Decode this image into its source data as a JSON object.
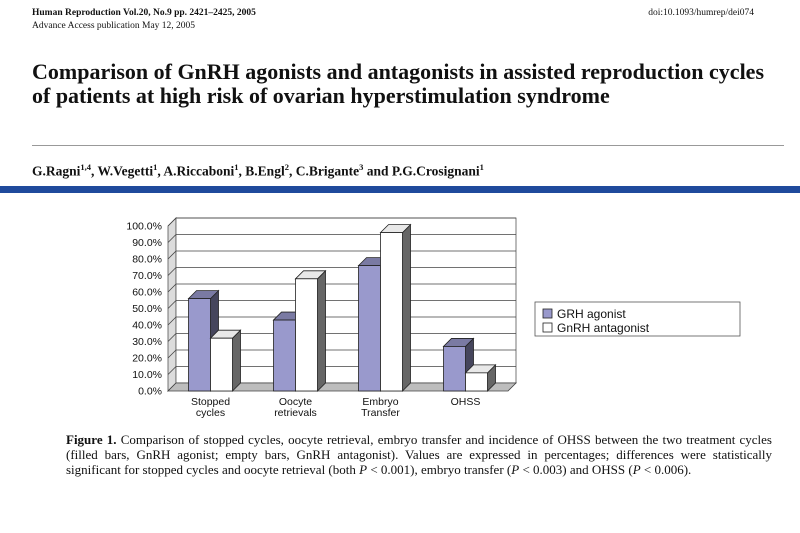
{
  "header": {
    "journal": "Human Reproduction Vol.20, No.9 pp. 2421–2425, 2005",
    "access": "Advance Access publication May 12, 2005",
    "doi": "doi:10.1093/humrep/dei074"
  },
  "title": "Comparison of GnRH agonists and antagonists in assisted reproduction cycles of patients at high risk of ovarian hyperstimulation syndrome",
  "authors": [
    {
      "name": "G.Ragni",
      "sup": "1,4"
    },
    {
      "name": "W.Vegetti",
      "sup": "1"
    },
    {
      "name": "A.Riccaboni",
      "sup": "1"
    },
    {
      "name": "B.Engl",
      "sup": "2"
    },
    {
      "name": "C.Brigante",
      "sup": "3"
    },
    {
      "name": "P.G.Crosignani",
      "sup": "1"
    }
  ],
  "authors_sep": ", ",
  "authors_and": " and ",
  "chart_data": {
    "type": "bar",
    "categories": [
      [
        "Stopped",
        "cycles"
      ],
      [
        "Oocyte",
        "retrievals"
      ],
      [
        "Embryo",
        "Transfer"
      ],
      [
        "OHSS"
      ]
    ],
    "series": [
      {
        "name": "GRH agonist",
        "values": [
          56,
          43,
          76,
          27
        ],
        "color": "#9999cc"
      },
      {
        "name": "GnRH antagonist",
        "values": [
          32,
          68,
          96,
          11
        ],
        "color": "#ffffff"
      }
    ],
    "yticks": [
      "0.0%",
      "10.0%",
      "20.0%",
      "30.0%",
      "40.0%",
      "50.0%",
      "60.0%",
      "70.0%",
      "80.0%",
      "90.0%",
      "100.0%"
    ],
    "ylim": [
      0,
      100
    ],
    "legend_position": "right"
  },
  "caption": {
    "label": "Figure 1.",
    "t1": " Comparison of stopped cycles, oocyte retrieval, embryo transfer and incidence of OHSS between the two treatment cycles (filled bars, GnRH agonist; empty bars, GnRH antagonist). Values are expressed in percentages; differences were statistically significant for stopped cycles and oocyte retrieval (both ",
    "p": "P",
    "t2": " < 0.001), embryo transfer (",
    "t3": " < 0.003) and OHSS (",
    "t4": " < 0.006)."
  }
}
